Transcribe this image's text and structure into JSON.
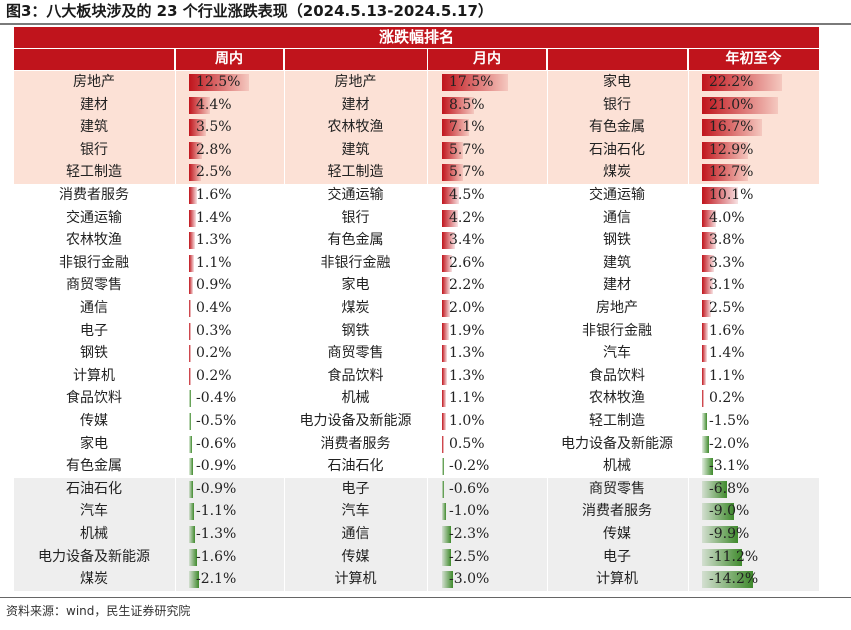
{
  "figure_title": "图3：八大板块涉及的 23 个行业涨跌表现（2024.5.13-2024.5.17）",
  "banner": "涨跌幅排名",
  "periods": [
    {
      "label": "周内"
    },
    {
      "label": "月内"
    },
    {
      "label": "年初至今"
    }
  ],
  "source": "资料来源：wind，民生证券研究院",
  "colors": {
    "accent_red": "#c0141c",
    "top_band": "#fce1d6",
    "bottom_band": "#eeeeee",
    "positive_bar": "#c0141c",
    "negative_bar": "#3f8a2c"
  },
  "chart_data": {
    "type": "table",
    "columns": [
      "周内",
      "月内",
      "年初至今"
    ],
    "rows": [
      {
        "week": {
          "name": "房地产",
          "value": "12.5%",
          "v": 12.5
        },
        "month": {
          "name": "房地产",
          "value": "17.5%",
          "v": 17.5
        },
        "ytd": {
          "name": "家电",
          "value": "22.2%",
          "v": 22.2
        }
      },
      {
        "week": {
          "name": "建材",
          "value": "4.4%",
          "v": 4.4
        },
        "month": {
          "name": "建材",
          "value": "8.5%",
          "v": 8.5
        },
        "ytd": {
          "name": "银行",
          "value": "21.0%",
          "v": 21.0
        }
      },
      {
        "week": {
          "name": "建筑",
          "value": "3.5%",
          "v": 3.5
        },
        "month": {
          "name": "农林牧渔",
          "value": "7.1%",
          "v": 7.1
        },
        "ytd": {
          "name": "有色金属",
          "value": "16.7%",
          "v": 16.7
        }
      },
      {
        "week": {
          "name": "银行",
          "value": "2.8%",
          "v": 2.8
        },
        "month": {
          "name": "建筑",
          "value": "5.7%",
          "v": 5.7
        },
        "ytd": {
          "name": "石油石化",
          "value": "12.9%",
          "v": 12.9
        }
      },
      {
        "week": {
          "name": "轻工制造",
          "value": "2.5%",
          "v": 2.5
        },
        "month": {
          "name": "轻工制造",
          "value": "5.7%",
          "v": 5.7
        },
        "ytd": {
          "name": "煤炭",
          "value": "12.7%",
          "v": 12.7
        }
      },
      {
        "week": {
          "name": "消费者服务",
          "value": "1.6%",
          "v": 1.6
        },
        "month": {
          "name": "交通运输",
          "value": "4.5%",
          "v": 4.5
        },
        "ytd": {
          "name": "交通运输",
          "value": "10.1%",
          "v": 10.1
        }
      },
      {
        "week": {
          "name": "交通运输",
          "value": "1.4%",
          "v": 1.4
        },
        "month": {
          "name": "银行",
          "value": "4.2%",
          "v": 4.2
        },
        "ytd": {
          "name": "通信",
          "value": "4.0%",
          "v": 4.0
        }
      },
      {
        "week": {
          "name": "农林牧渔",
          "value": "1.3%",
          "v": 1.3
        },
        "month": {
          "name": "有色金属",
          "value": "3.4%",
          "v": 3.4
        },
        "ytd": {
          "name": "钢铁",
          "value": "3.8%",
          "v": 3.8
        }
      },
      {
        "week": {
          "name": "非银行金融",
          "value": "1.1%",
          "v": 1.1
        },
        "month": {
          "name": "非银行金融",
          "value": "2.6%",
          "v": 2.6
        },
        "ytd": {
          "name": "建筑",
          "value": "3.3%",
          "v": 3.3
        }
      },
      {
        "week": {
          "name": "商贸零售",
          "value": "0.9%",
          "v": 0.9
        },
        "month": {
          "name": "家电",
          "value": "2.2%",
          "v": 2.2
        },
        "ytd": {
          "name": "建材",
          "value": "3.1%",
          "v": 3.1
        }
      },
      {
        "week": {
          "name": "通信",
          "value": "0.4%",
          "v": 0.4
        },
        "month": {
          "name": "煤炭",
          "value": "2.0%",
          "v": 2.0
        },
        "ytd": {
          "name": "房地产",
          "value": "2.5%",
          "v": 2.5
        }
      },
      {
        "week": {
          "name": "电子",
          "value": "0.3%",
          "v": 0.3
        },
        "month": {
          "name": "钢铁",
          "value": "1.9%",
          "v": 1.9
        },
        "ytd": {
          "name": "非银行金融",
          "value": "1.6%",
          "v": 1.6
        }
      },
      {
        "week": {
          "name": "钢铁",
          "value": "0.2%",
          "v": 0.2
        },
        "month": {
          "name": "商贸零售",
          "value": "1.3%",
          "v": 1.3
        },
        "ytd": {
          "name": "汽车",
          "value": "1.4%",
          "v": 1.4
        }
      },
      {
        "week": {
          "name": "计算机",
          "value": "0.2%",
          "v": 0.2
        },
        "month": {
          "name": "食品饮料",
          "value": "1.3%",
          "v": 1.3
        },
        "ytd": {
          "name": "食品饮料",
          "value": "1.1%",
          "v": 1.1
        }
      },
      {
        "week": {
          "name": "食品饮料",
          "value": "-0.4%",
          "v": -0.4
        },
        "month": {
          "name": "机械",
          "value": "1.1%",
          "v": 1.1
        },
        "ytd": {
          "name": "农林牧渔",
          "value": "0.2%",
          "v": 0.2
        }
      },
      {
        "week": {
          "name": "传媒",
          "value": "-0.5%",
          "v": -0.5
        },
        "month": {
          "name": "电力设备及新能源",
          "value": "1.0%",
          "v": 1.0
        },
        "ytd": {
          "name": "轻工制造",
          "value": "-1.5%",
          "v": -1.5
        }
      },
      {
        "week": {
          "name": "家电",
          "value": "-0.6%",
          "v": -0.6
        },
        "month": {
          "name": "消费者服务",
          "value": "0.5%",
          "v": 0.5
        },
        "ytd": {
          "name": "电力设备及新能源",
          "value": "-2.0%",
          "v": -2.0
        }
      },
      {
        "week": {
          "name": "有色金属",
          "value": "-0.9%",
          "v": -0.9
        },
        "month": {
          "name": "石油石化",
          "value": "-0.2%",
          "v": -0.2
        },
        "ytd": {
          "name": "机械",
          "value": "-3.1%",
          "v": -3.1
        }
      },
      {
        "week": {
          "name": "石油石化",
          "value": "-0.9%",
          "v": -0.9
        },
        "month": {
          "name": "电子",
          "value": "-0.6%",
          "v": -0.6
        },
        "ytd": {
          "name": "商贸零售",
          "value": "-6.8%",
          "v": -6.8
        }
      },
      {
        "week": {
          "name": "汽车",
          "value": "-1.1%",
          "v": -1.1
        },
        "month": {
          "name": "汽车",
          "value": "-1.0%",
          "v": -1.0
        },
        "ytd": {
          "name": "消费者服务",
          "value": "-9.0%",
          "v": -9.0
        }
      },
      {
        "week": {
          "name": "机械",
          "value": "-1.3%",
          "v": -1.3
        },
        "month": {
          "name": "通信",
          "value": "-2.3%",
          "v": -2.3
        },
        "ytd": {
          "name": "传媒",
          "value": "-9.9%",
          "v": -9.9
        }
      },
      {
        "week": {
          "name": "电力设备及新能源",
          "value": "-1.6%",
          "v": -1.6
        },
        "month": {
          "name": "传媒",
          "value": "-2.5%",
          "v": -2.5
        },
        "ytd": {
          "name": "电子",
          "value": "-11.2%",
          "v": -11.2
        }
      },
      {
        "week": {
          "name": "煤炭",
          "value": "-2.1%",
          "v": -2.1
        },
        "month": {
          "name": "计算机",
          "value": "-3.0%",
          "v": -3.0
        },
        "ytd": {
          "name": "计算机",
          "value": "-14.2%",
          "v": -14.2
        }
      }
    ]
  }
}
